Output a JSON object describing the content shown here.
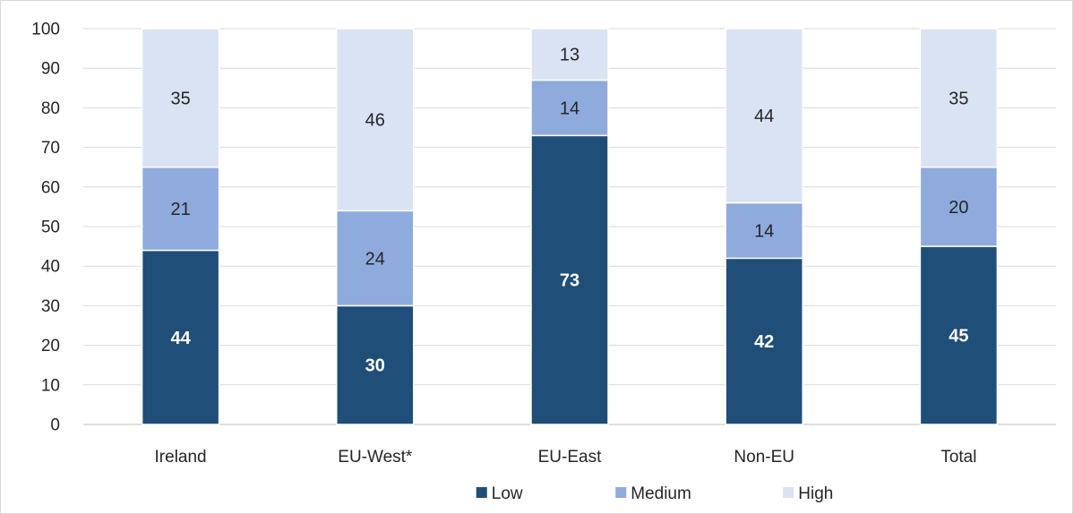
{
  "chart_data": {
    "type": "bar",
    "stacked": true,
    "categories": [
      "Ireland",
      "EU-West*",
      "EU-East",
      "Non-EU",
      "Total"
    ],
    "series": [
      {
        "name": "Low",
        "values": [
          44,
          30,
          73,
          42,
          45
        ],
        "color": "#1f4e79",
        "label_color": "#ffffff",
        "label_bold": true
      },
      {
        "name": "Medium",
        "values": [
          21,
          24,
          14,
          14,
          20
        ],
        "color": "#8faadc",
        "label_color": "#262626",
        "label_bold": false
      },
      {
        "name": "High",
        "values": [
          35,
          46,
          13,
          44,
          35
        ],
        "color": "#dae3f3",
        "label_color": "#262626",
        "label_bold": false
      }
    ],
    "ylim": [
      0,
      100
    ],
    "yticks": [
      0,
      10,
      20,
      30,
      40,
      50,
      60,
      70,
      80,
      90,
      100
    ],
    "grid": true,
    "legend": "bottom",
    "title": "",
    "xlabel": "",
    "ylabel": ""
  }
}
